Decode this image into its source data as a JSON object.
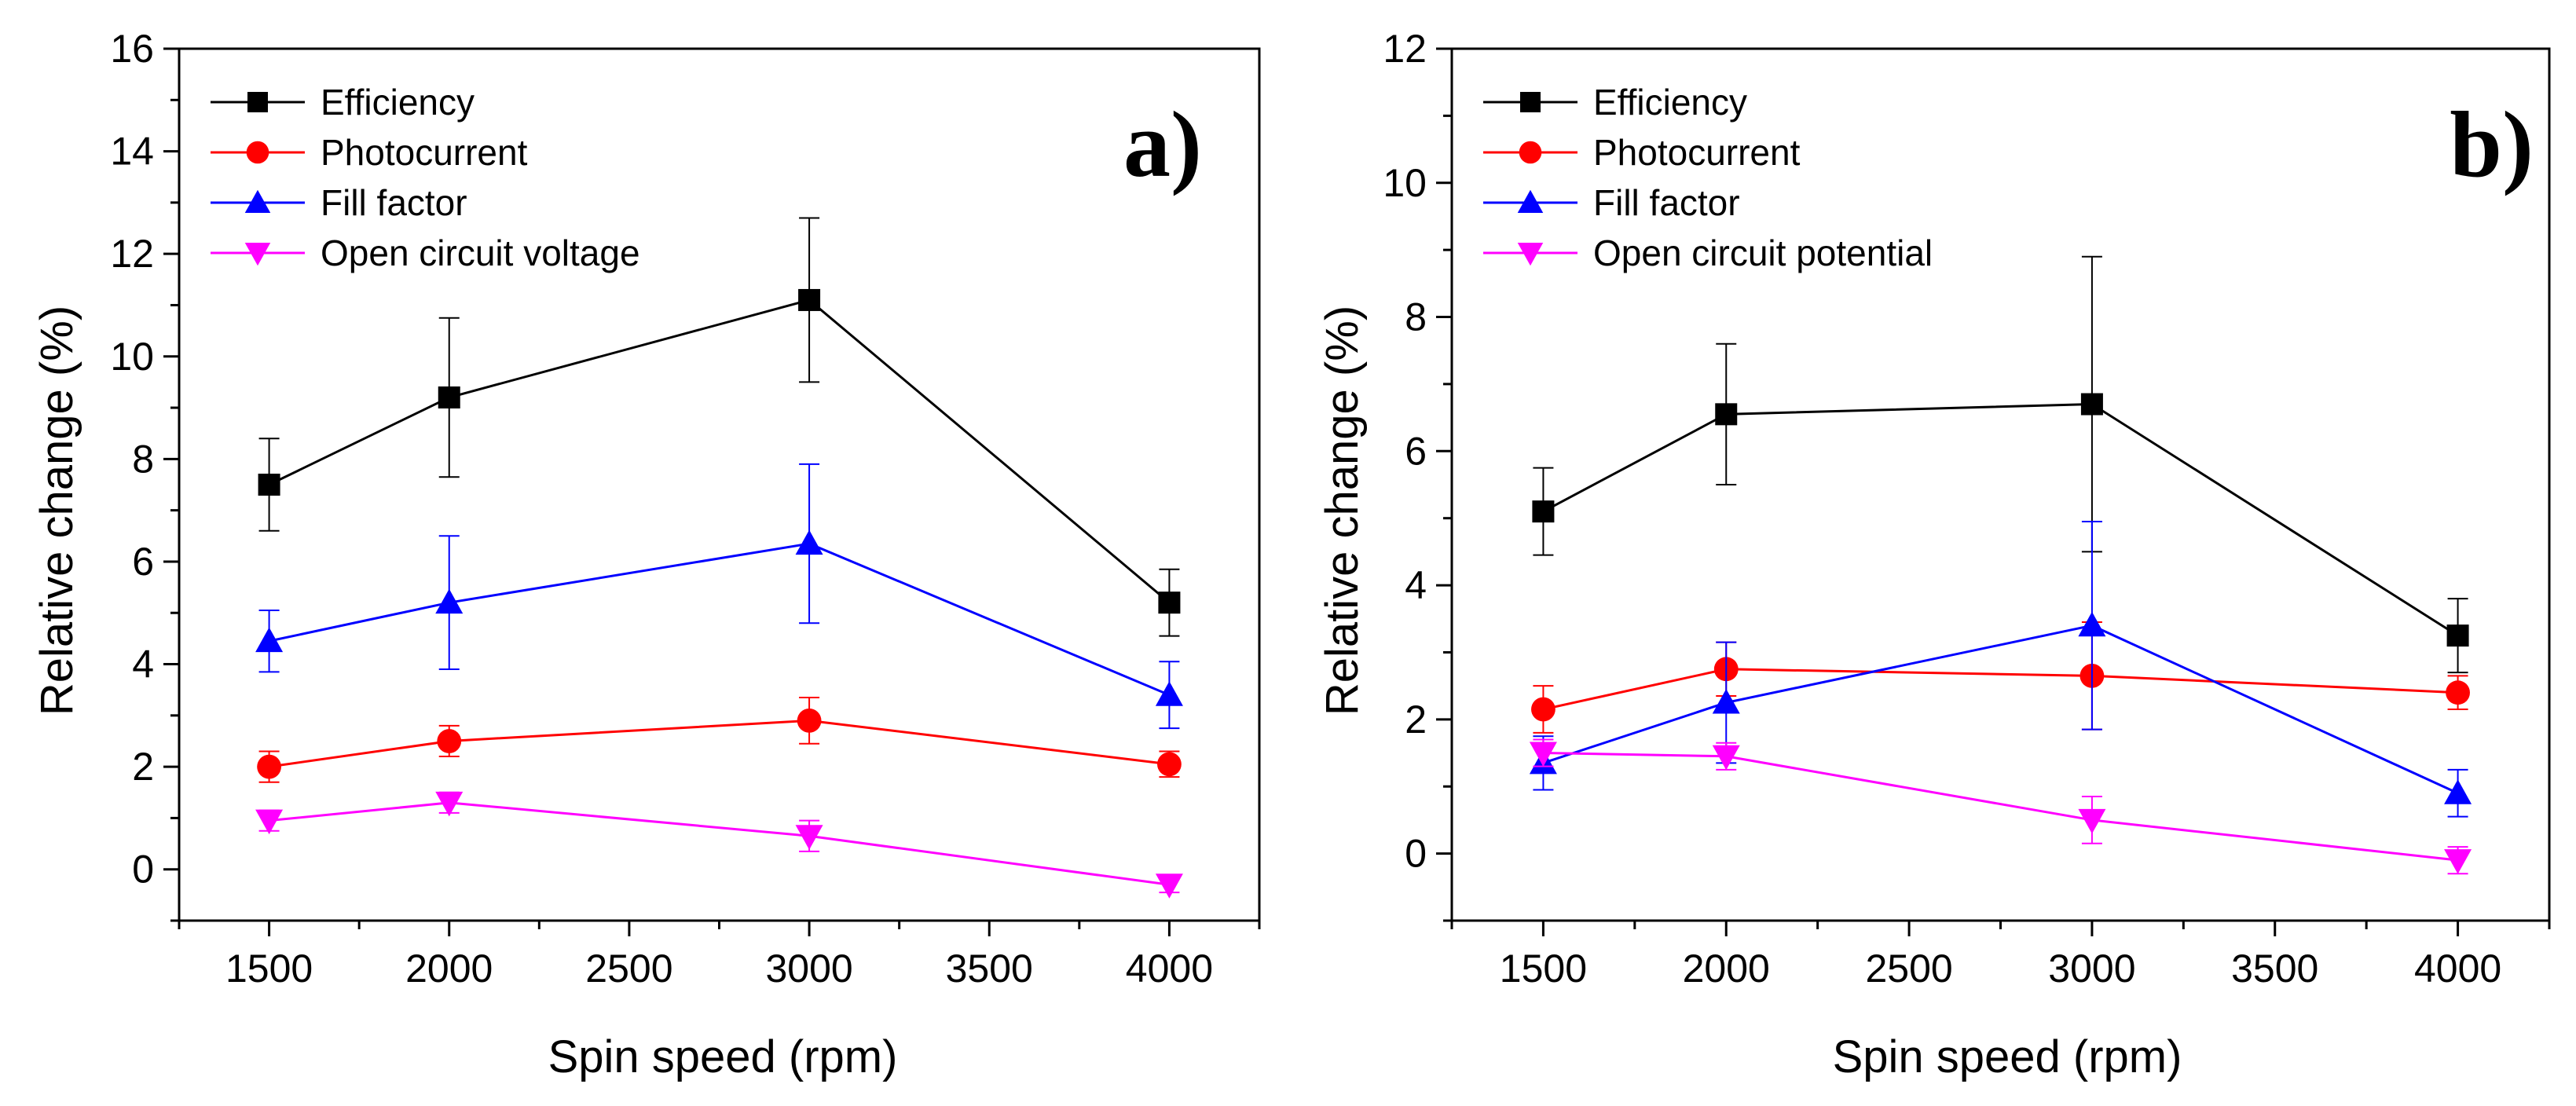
{
  "chart_data": [
    {
      "type": "line",
      "panel_label": "a)",
      "xlabel": "Spin speed (rpm)",
      "ylabel": "Relative change (%)",
      "xlim": [
        1250,
        4250
      ],
      "ylim": [
        -1,
        16
      ],
      "xticks": [
        1500,
        2000,
        2500,
        3000,
        3500,
        4000
      ],
      "yticks": [
        0,
        2,
        4,
        6,
        8,
        10,
        12,
        14,
        16
      ],
      "legend_position": "top-left",
      "x": [
        1500,
        2000,
        3000,
        4000
      ],
      "series": [
        {
          "name": "Efficiency",
          "color": "#000000",
          "marker": "square",
          "values": [
            7.5,
            9.2,
            11.1,
            5.2
          ],
          "errors": [
            0.9,
            1.55,
            1.6,
            0.65
          ]
        },
        {
          "name": "Photocurrent",
          "color": "#ff0000",
          "marker": "circle",
          "values": [
            2.0,
            2.5,
            2.9,
            2.05
          ],
          "errors": [
            0.3,
            0.3,
            0.45,
            0.25
          ]
        },
        {
          "name": "Fill factor",
          "color": "#0000ff",
          "marker": "triangle-up",
          "values": [
            4.45,
            5.2,
            6.35,
            3.4
          ],
          "errors": [
            0.6,
            1.3,
            1.55,
            0.65
          ]
        },
        {
          "name": "Open circuit voltage",
          "color": "#ff00ff",
          "marker": "triangle-down",
          "values": [
            0.95,
            1.3,
            0.65,
            -0.3
          ],
          "errors": [
            0.2,
            0.2,
            0.3,
            0.15
          ]
        }
      ]
    },
    {
      "type": "line",
      "panel_label": "b)",
      "xlabel": "Spin speed (rpm)",
      "ylabel": "Relative change (%)",
      "xlim": [
        1250,
        4250
      ],
      "ylim": [
        -1,
        12
      ],
      "xticks": [
        1500,
        2000,
        2500,
        3000,
        3500,
        4000
      ],
      "yticks": [
        0,
        2,
        4,
        6,
        8,
        10,
        12
      ],
      "legend_position": "top-left",
      "x": [
        1500,
        2000,
        3000,
        4000
      ],
      "series": [
        {
          "name": "Efficiency",
          "color": "#000000",
          "marker": "square",
          "values": [
            5.1,
            6.55,
            6.7,
            3.25
          ],
          "errors": [
            0.65,
            1.05,
            2.2,
            0.55
          ]
        },
        {
          "name": "Photocurrent",
          "color": "#ff0000",
          "marker": "circle",
          "values": [
            2.15,
            2.75,
            2.65,
            2.4
          ],
          "errors": [
            0.35,
            0.4,
            0.8,
            0.25
          ]
        },
        {
          "name": "Fill factor",
          "color": "#0000ff",
          "marker": "triangle-up",
          "values": [
            1.35,
            2.25,
            3.4,
            0.9
          ],
          "errors": [
            0.4,
            0.9,
            1.55,
            0.35
          ]
        },
        {
          "name": "Open circuit potential",
          "color": "#ff00ff",
          "marker": "triangle-down",
          "values": [
            1.5,
            1.45,
            0.5,
            -0.1
          ],
          "errors": [
            0.2,
            0.2,
            0.35,
            0.2
          ]
        }
      ]
    }
  ]
}
